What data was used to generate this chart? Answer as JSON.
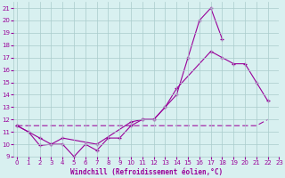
{
  "series1_x": [
    0,
    1,
    2,
    3,
    4,
    5,
    6,
    7,
    8,
    9,
    10,
    11,
    12,
    13,
    14,
    15,
    16,
    17,
    18
  ],
  "series1_y": [
    11.5,
    11.0,
    9.9,
    10.0,
    10.0,
    9.0,
    10.0,
    9.5,
    10.5,
    10.5,
    11.5,
    12.0,
    12.0,
    13.0,
    14.0,
    17.0,
    20.0,
    21.0,
    18.5
  ],
  "series2_x": [
    0,
    2,
    3,
    4,
    7,
    10,
    11,
    12,
    13,
    14,
    17,
    18,
    19,
    20,
    21,
    22
  ],
  "series2_y": [
    11.5,
    10.5,
    10.0,
    10.5,
    10.0,
    11.8,
    12.0,
    12.0,
    13.0,
    14.5,
    17.5,
    17.0,
    16.5,
    16.5,
    15.0,
    13.5
  ],
  "series3_x": [
    0,
    1,
    2,
    3,
    4,
    5,
    6,
    7,
    8,
    9,
    10,
    11,
    12,
    13,
    14,
    15,
    16,
    17,
    18,
    19,
    20,
    21,
    22
  ],
  "series3_y": [
    11.5,
    11.5,
    11.5,
    11.5,
    11.5,
    11.5,
    11.5,
    11.5,
    11.5,
    11.5,
    11.5,
    11.5,
    11.5,
    11.5,
    11.5,
    11.5,
    11.5,
    11.5,
    11.5,
    11.5,
    11.5,
    11.5,
    12.0
  ],
  "ylim": [
    9,
    21.5
  ],
  "xlim": [
    0,
    23
  ],
  "yticks": [
    9,
    10,
    11,
    12,
    13,
    14,
    15,
    16,
    17,
    18,
    19,
    20,
    21
  ],
  "xticks": [
    0,
    1,
    2,
    3,
    4,
    5,
    6,
    7,
    8,
    9,
    10,
    11,
    12,
    13,
    14,
    15,
    16,
    17,
    18,
    19,
    20,
    21,
    22,
    23
  ],
  "color": "#990099",
  "bg_color": "#d8f0f0",
  "grid_color": "#aacccc",
  "xlabel": "Windchill (Refroidissement éolien,°C)"
}
